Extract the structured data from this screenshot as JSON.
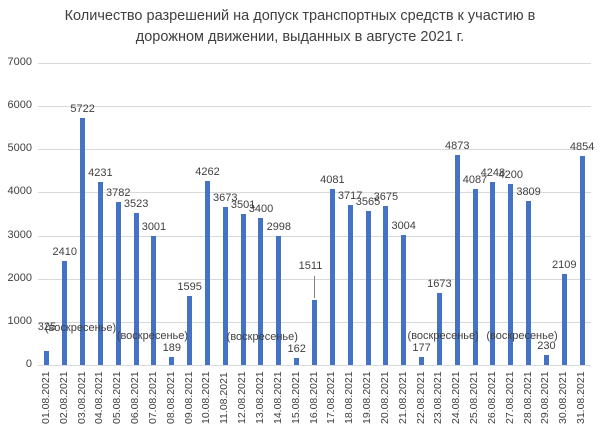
{
  "title_lines": [
    "Количество разрешений на допуск транспортных средств к участию в",
    "дорожном движении, выданных в августе 2021 г."
  ],
  "colors": {
    "bar": "#4472c4",
    "grid": "#d9d9d9",
    "text": "#404040"
  },
  "chart_data": {
    "type": "bar",
    "title": "Количество разрешений на допуск транспортных средств к участию в дорожном движении, выданных в августе 2021 г.",
    "xlabel": "",
    "ylabel": "",
    "ylim": [
      0,
      7000
    ],
    "yticks": [
      0,
      1000,
      2000,
      3000,
      4000,
      5000,
      6000,
      7000
    ],
    "grid": true,
    "legend": "none",
    "categories": [
      "01.08.2021",
      "02.08.2021",
      "03.08.2021",
      "04.08.2021",
      "05.08.2021",
      "06.08.2021",
      "07.08.2021",
      "08.08.2021",
      "09.08.2021",
      "10.08.2021",
      "11.08.2021",
      "12.08.2021",
      "13.08.2021",
      "14.08.2021",
      "15.08.2021",
      "16.08.2021",
      "17.08.2021",
      "18.08.2021",
      "19.08.2021",
      "20.08.2021",
      "21.08.2021",
      "22.08.2021",
      "23.08.2021",
      "24.08.2021",
      "25.08.2021",
      "26.08.2021",
      "27.08.2021",
      "28.08.2021",
      "29.08.2021",
      "30.08.2021",
      "31.08.2021"
    ],
    "values": [
      325,
      2410,
      5722,
      4231,
      3782,
      3523,
      3001,
      189,
      1595,
      4262,
      3673,
      3501,
      3400,
      2998,
      162,
      1511,
      4081,
      3717,
      3565,
      3675,
      3004,
      177,
      1673,
      4873,
      4087,
      4248,
      4200,
      3809,
      230,
      2109,
      4854
    ],
    "annotations": [
      {
        "category": "01.08.2021",
        "text": "(воскресенье)"
      },
      {
        "category": "08.08.2021",
        "text": "(воскресенье)"
      },
      {
        "category": "15.08.2021",
        "text": "(воскресенье)"
      },
      {
        "category": "22.08.2021",
        "text": "(воскресенье)"
      },
      {
        "category": "29.08.2021",
        "text": "(воскресенье)"
      }
    ]
  }
}
